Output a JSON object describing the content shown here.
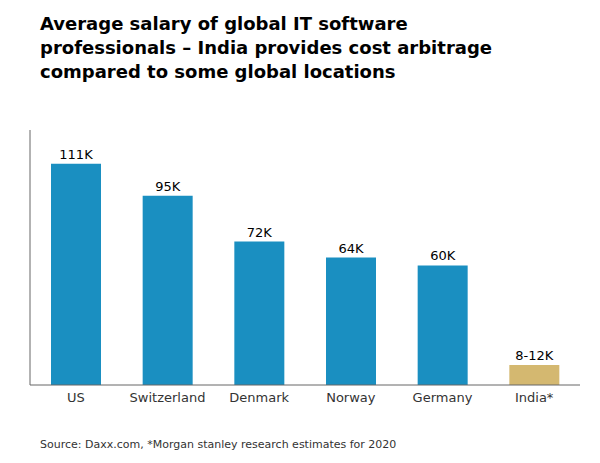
{
  "chart_data": {
    "type": "bar",
    "title": "Average salary of global IT software\nprofessionals – India provides cost arbitrage\ncompared to some global locations",
    "source": "Source: Daxx.com, *Morgan stanley research estimates for 2020",
    "categories": [
      "US",
      "Switzerland",
      "Denmark",
      "Norway",
      "Germany",
      "India*"
    ],
    "values": [
      111,
      95,
      72,
      64,
      60,
      10
    ],
    "value_labels": [
      "111K",
      "95K",
      "72K",
      "64K",
      "60K",
      "8-12K"
    ],
    "colors": [
      "#1a8fc1",
      "#1a8fc1",
      "#1a8fc1",
      "#1a8fc1",
      "#1a8fc1",
      "#d4b870"
    ],
    "ylim": [
      0,
      128
    ],
    "data_labels": true,
    "tick_labels": "x",
    "grid": false
  }
}
